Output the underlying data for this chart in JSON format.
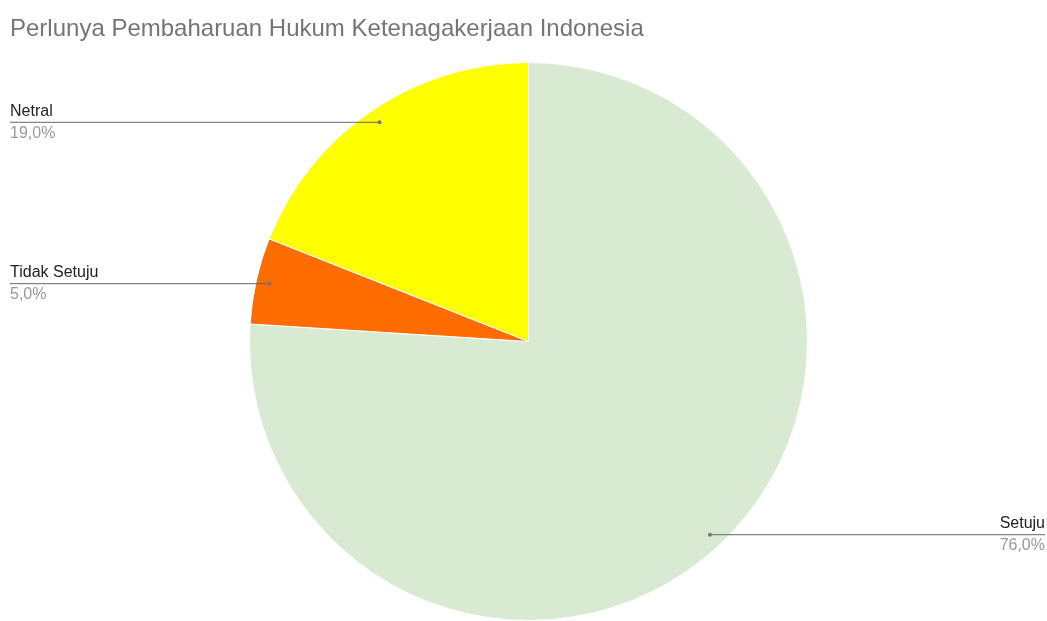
{
  "chart_data": {
    "type": "pie",
    "title": "Perlunya Pembaharuan Hukum Ketenagakerjaan Indonesia",
    "categories": [
      "Setuju",
      "Tidak Setuju",
      "Netral"
    ],
    "values": [
      76,
      5,
      19
    ],
    "colors": [
      "#d9ead3",
      "#ff6d01",
      "#ffff00"
    ],
    "value_labels": [
      "76,0%",
      "5,0%",
      "19,0%"
    ]
  }
}
